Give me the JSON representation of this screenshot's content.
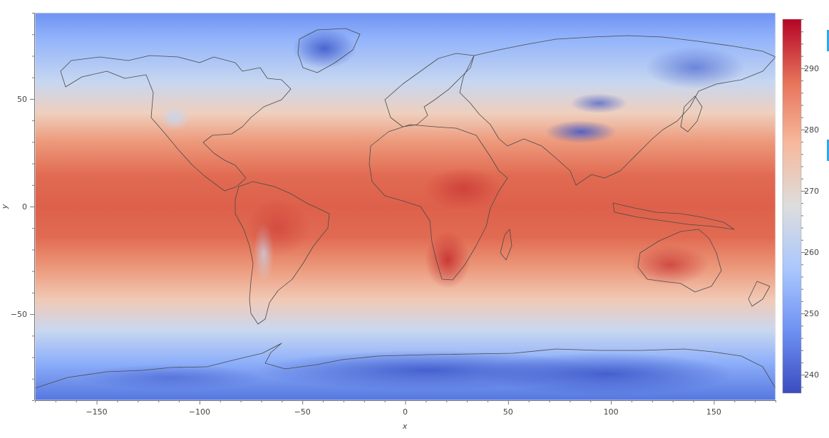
{
  "chart": {
    "type": "heatmap",
    "xlabel": "x",
    "ylabel": "y",
    "xlim": [
      -180,
      180
    ],
    "ylim": [
      -90,
      90
    ],
    "x_ticks": [
      -150,
      -100,
      -50,
      0,
      50,
      100,
      150
    ],
    "y_ticks": [
      -50,
      0,
      50
    ],
    "colorbar": {
      "ticks": [
        240,
        250,
        260,
        270,
        280,
        290
      ],
      "range": [
        237,
        298
      ],
      "colormap": "coolwarm",
      "colors": [
        "#3b4cc0",
        "#6f92f3",
        "#aac7fd",
        "#dddddd",
        "#f7b89c",
        "#e7745b",
        "#b40426"
      ]
    },
    "grid": false
  },
  "colors": {
    "axis": "#777777",
    "text": "#444444",
    "coastline": "#4a4a4a",
    "edge_tool": "#2ea8e6"
  }
}
